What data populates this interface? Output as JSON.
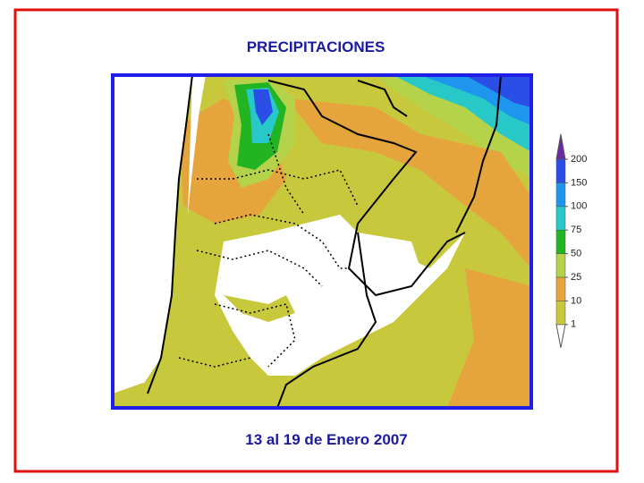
{
  "title": "PRECIPITACIONES",
  "caption": "13 al 19 de Enero  2007",
  "colorbar": {
    "ticks": [
      1,
      10,
      25,
      50,
      75,
      100,
      150,
      200
    ],
    "colors": [
      "#ffffff",
      "#c8c83c",
      "#e6a43c",
      "#b4d24a",
      "#22b422",
      "#28c8c8",
      "#1e96ee",
      "#2a4ee6",
      "#6a2aa8"
    ]
  }
}
